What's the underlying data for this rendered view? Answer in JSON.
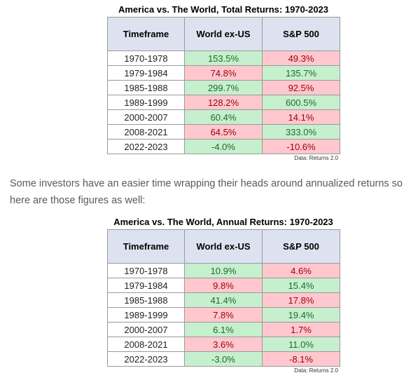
{
  "colors": {
    "header_bg": "#dde2f0",
    "positive_bg": "#c6efce",
    "positive_text": "#1e6b2d",
    "negative_bg": "#ffc7ce",
    "negative_text": "#9c0006"
  },
  "paragraph": "Some investors have an easier time wrapping their heads around annualized returns so here are those figures as well:",
  "tables": [
    {
      "title": "America vs. The World, Total Returns: 1970-2023",
      "headers": [
        "Timeframe",
        "World ex-US",
        "S&P 500"
      ],
      "rows": [
        {
          "timeframe": "1970-1978",
          "world": "153.5%",
          "sp": "49.3%",
          "winner": "world"
        },
        {
          "timeframe": "1979-1984",
          "world": "74.8%",
          "sp": "135.7%",
          "winner": "sp"
        },
        {
          "timeframe": "1985-1988",
          "world": "299.7%",
          "sp": "92.5%",
          "winner": "world"
        },
        {
          "timeframe": "1989-1999",
          "world": "128.2%",
          "sp": "600.5%",
          "winner": "sp"
        },
        {
          "timeframe": "2000-2007",
          "world": "60.4%",
          "sp": "14.1%",
          "winner": "world"
        },
        {
          "timeframe": "2008-2021",
          "world": "64.5%",
          "sp": "333.0%",
          "winner": "sp"
        },
        {
          "timeframe": "2022-2023",
          "world": "-4.0%",
          "sp": "-10.6%",
          "winner": "world"
        }
      ],
      "source": "Data: Returns 2.0"
    },
    {
      "title": "America vs. The World, Annual Returns: 1970-2023",
      "headers": [
        "Timeframe",
        "World ex-US",
        "S&P 500"
      ],
      "rows": [
        {
          "timeframe": "1970-1978",
          "world": "10.9%",
          "sp": "4.6%",
          "winner": "world"
        },
        {
          "timeframe": "1979-1984",
          "world": "9.8%",
          "sp": "15.4%",
          "winner": "sp"
        },
        {
          "timeframe": "1985-1988",
          "world": "41.4%",
          "sp": "17.8%",
          "winner": "world"
        },
        {
          "timeframe": "1989-1999",
          "world": "7.8%",
          "sp": "19.4%",
          "winner": "sp"
        },
        {
          "timeframe": "2000-2007",
          "world": "6.1%",
          "sp": "1.7%",
          "winner": "world"
        },
        {
          "timeframe": "2008-2021",
          "world": "3.6%",
          "sp": "11.0%",
          "winner": "sp"
        },
        {
          "timeframe": "2022-2023",
          "world": "-3.0%",
          "sp": "-8.1%",
          "winner": "world"
        }
      ],
      "source": "Data: Returns 2.0"
    }
  ]
}
